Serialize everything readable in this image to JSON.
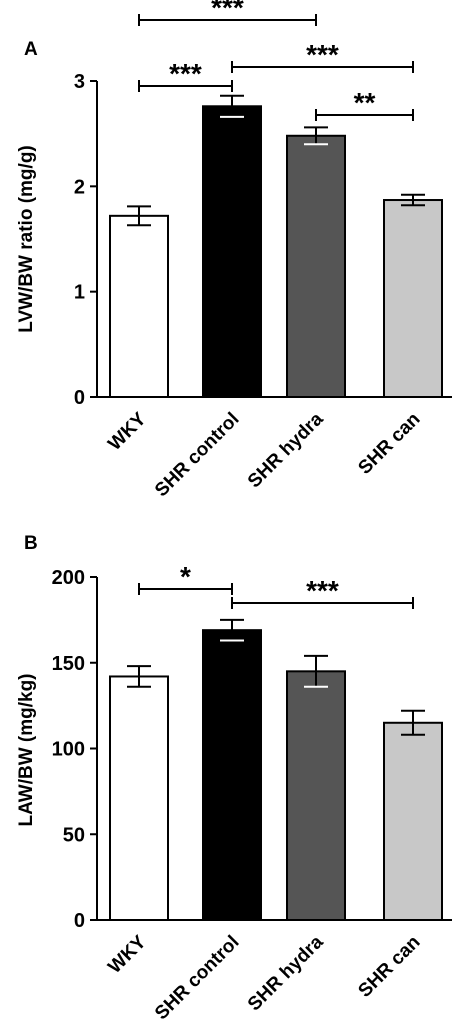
{
  "chart_data": [
    {
      "panel": "A",
      "type": "bar",
      "categories": [
        "WKY",
        "SHR control",
        "SHR hydra",
        "SHR can"
      ],
      "values": [
        1.72,
        2.76,
        2.48,
        1.87
      ],
      "errors": [
        0.09,
        0.1,
        0.08,
        0.05
      ],
      "bar_colors": [
        "#ffffff",
        "#000000",
        "#555555",
        "#c8c8c8"
      ],
      "ylabel": "LVW/BW ratio (mg/g)",
      "ylim": [
        0,
        3
      ],
      "yticks": [
        "0",
        "1",
        "2",
        "3"
      ],
      "significance": [
        {
          "from": 0,
          "to": 2,
          "label": "***"
        },
        {
          "from": 0,
          "to": 1,
          "label": "***"
        },
        {
          "from": 1,
          "to": 3,
          "label": "***"
        },
        {
          "from": 2,
          "to": 3,
          "label": "**"
        }
      ]
    },
    {
      "panel": "B",
      "type": "bar",
      "categories": [
        "WKY",
        "SHR control",
        "SHR hydra",
        "SHR can"
      ],
      "values": [
        142,
        169,
        145,
        115
      ],
      "errors": [
        6,
        6,
        9,
        7
      ],
      "bar_colors": [
        "#ffffff",
        "#000000",
        "#555555",
        "#c8c8c8"
      ],
      "ylabel": "LAW/BW (mg/kg)",
      "ylim": [
        0,
        200
      ],
      "yticks": [
        "0",
        "50",
        "100",
        "150",
        "200"
      ],
      "significance": [
        {
          "from": 0,
          "to": 1,
          "label": "*"
        },
        {
          "from": 1,
          "to": 3,
          "label": "***"
        }
      ]
    }
  ]
}
